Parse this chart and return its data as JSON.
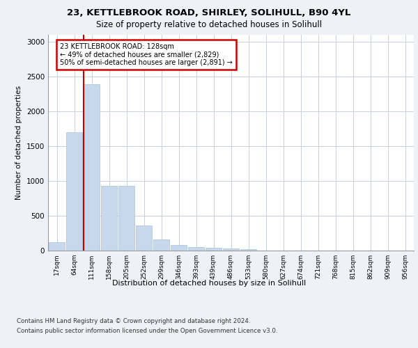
{
  "title1": "23, KETTLEBROOK ROAD, SHIRLEY, SOLIHULL, B90 4YL",
  "title2": "Size of property relative to detached houses in Solihull",
  "xlabel": "Distribution of detached houses by size in Solihull",
  "ylabel": "Number of detached properties",
  "bar_color": "#c8d8ec",
  "bar_edge_color": "#a8c0d8",
  "categories": [
    "17sqm",
    "64sqm",
    "111sqm",
    "158sqm",
    "205sqm",
    "252sqm",
    "299sqm",
    "346sqm",
    "393sqm",
    "439sqm",
    "486sqm",
    "533sqm",
    "580sqm",
    "627sqm",
    "674sqm",
    "721sqm",
    "768sqm",
    "815sqm",
    "862sqm",
    "909sqm",
    "956sqm"
  ],
  "values": [
    120,
    1700,
    2390,
    930,
    930,
    360,
    160,
    80,
    55,
    38,
    30,
    20,
    0,
    0,
    0,
    0,
    0,
    0,
    0,
    0,
    0
  ],
  "annotation_title": "23 KETTLEBROOK ROAD: 128sqm",
  "annotation_line1": "← 49% of detached houses are smaller (2,829)",
  "annotation_line2": "50% of semi-detached houses are larger (2,891) →",
  "property_line_bar_index": 2,
  "ylim": [
    0,
    3100
  ],
  "yticks": [
    0,
    500,
    1000,
    1500,
    2000,
    2500,
    3000
  ],
  "footer1": "Contains HM Land Registry data © Crown copyright and database right 2024.",
  "footer2": "Contains public sector information licensed under the Open Government Licence v3.0.",
  "bg_color": "#eef2f7",
  "plot_bg_color": "#ffffff",
  "grid_color": "#c8d0dc",
  "annotation_box_color": "#ffffff",
  "annotation_box_edge": "#cc0000",
  "property_line_color": "#cc0000"
}
